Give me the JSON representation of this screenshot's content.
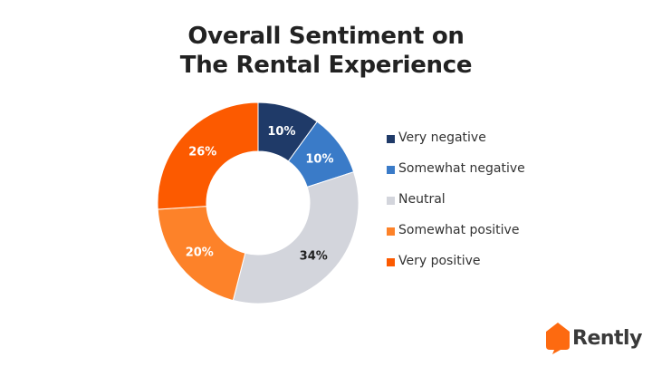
{
  "chart_data": {
    "type": "pie",
    "variant": "donut",
    "title_lines": [
      "Overall Sentiment on",
      "The Rental Experience"
    ],
    "legend_position": "right",
    "slices": [
      {
        "label": "Very negative",
        "value": 10,
        "value_label": "10%",
        "color": "#1f3a68",
        "text_color": "#ffffff"
      },
      {
        "label": "Somewhat negative",
        "value": 10,
        "value_label": "10%",
        "color": "#3a7bc8",
        "text_color": "#ffffff"
      },
      {
        "label": "Neutral",
        "value": 34,
        "value_label": "34%",
        "color": "#d3d5dc",
        "text_color": "#222222"
      },
      {
        "label": "Somewhat positive",
        "value": 20,
        "value_label": "20%",
        "color": "#fd8229",
        "text_color": "#ffffff"
      },
      {
        "label": "Very positive",
        "value": 26,
        "value_label": "26%",
        "color": "#fc5a00",
        "text_color": "#ffffff"
      }
    ]
  },
  "logo": {
    "text": "Rently",
    "icon": "rently-house-icon",
    "color": "#fd6a10"
  }
}
